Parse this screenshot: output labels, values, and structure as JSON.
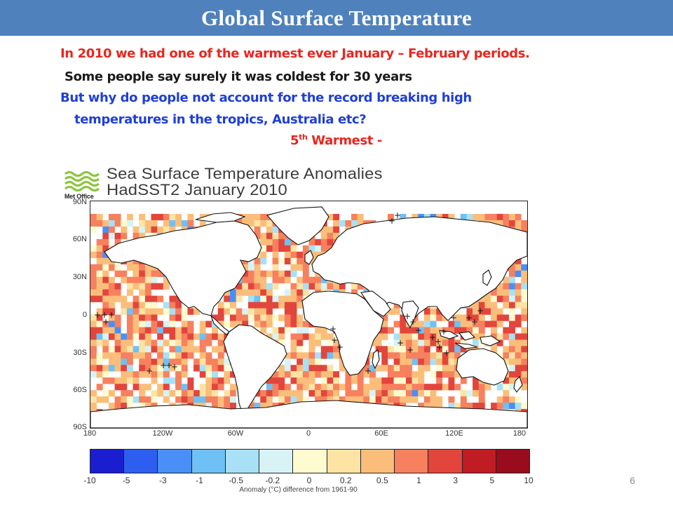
{
  "slide": {
    "title": "Global Surface Temperature",
    "lines": [
      "In 2010 we had one of the warmest ever January – February periods.",
      "Some people say surely it was coldest for 30 years",
      "But why do people not account for the record breaking high",
      "temperatures in the tropics, Australia etc?"
    ],
    "fifth_prefix": "5",
    "fifth_sup": "th",
    "fifth_suffix": " Warmest -",
    "page_number": "6"
  },
  "figure": {
    "title_line1": "Sea Surface Temperature Anomalies",
    "title_line2": "HadSST2 January 2010",
    "logo_text": "Met Office",
    "lat_labels": [
      "90N",
      "60N",
      "30N",
      "0",
      "30S",
      "60S",
      "90S"
    ],
    "lon_labels": [
      "180",
      "120W",
      "60W",
      "0",
      "60E",
      "120E",
      "180"
    ],
    "colorbar_labels": [
      "-10",
      "-5",
      "-3",
      "-1",
      "-0.5",
      "-0.2",
      "0",
      "0.2",
      "0.5",
      "1",
      "3",
      "5",
      "10"
    ],
    "colorbar_colors": [
      "#1a1ed0",
      "#2d5ef0",
      "#4a8ff5",
      "#6fc0f4",
      "#a8e0f6",
      "#d8f3f5",
      "#fffbd0",
      "#fde3a4",
      "#fbbe7a",
      "#f7805e",
      "#e2453c",
      "#bf1c24",
      "#990c1d"
    ],
    "caption": "Anomaly (°C) difference from 1961-90"
  }
}
